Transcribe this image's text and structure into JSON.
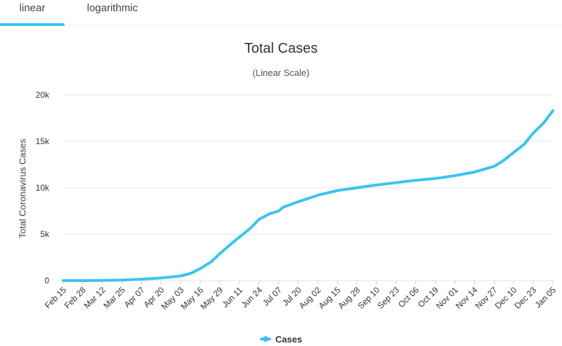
{
  "tabs": [
    {
      "label": "linear",
      "active": true
    },
    {
      "label": "logarithmic",
      "active": false
    }
  ],
  "colors": {
    "accent": "#3cc3f0",
    "series": "#3cc3f0",
    "grid": "#e6e6e6",
    "axis_text": "#333333"
  },
  "chart_data": {
    "type": "line",
    "title": "Total Cases",
    "subtitle": "(Linear Scale)",
    "xlabel": "",
    "ylabel": "Total Coronavirus Cases",
    "ylim": [
      0,
      20000
    ],
    "yticks": [
      0,
      5000,
      10000,
      15000,
      20000
    ],
    "ytick_labels": [
      "0",
      "5k",
      "10k",
      "15k",
      "20k"
    ],
    "xtick_labels": [
      "Feb 15",
      "Feb 28",
      "Mar 12",
      "Mar 25",
      "Apr 07",
      "Apr 20",
      "May 03",
      "May 16",
      "May 29",
      "Jun 11",
      "Jun 24",
      "Jul 07",
      "Jul 20",
      "Aug 02",
      "Aug 15",
      "Aug 28",
      "Sep 10",
      "Sep 23",
      "Oct 06",
      "Oct 19",
      "Nov 01",
      "Nov 14",
      "Nov 27",
      "Dec 10",
      "Dec 23",
      "Jan 05"
    ],
    "grid": true,
    "legend_position": "bottom-center",
    "series": [
      {
        "name": "Cases",
        "x": [
          "Feb 15",
          "Feb 28",
          "Mar 12",
          "Mar 25",
          "Apr 07",
          "Apr 20",
          "May 03",
          "May 10",
          "May 16",
          "May 23",
          "May 29",
          "Jun 05",
          "Jun 11",
          "Jun 18",
          "Jun 24",
          "Jul 01",
          "Jul 07",
          "Jul 10",
          "Jul 20",
          "Aug 02",
          "Aug 15",
          "Aug 28",
          "Sep 10",
          "Sep 23",
          "Oct 06",
          "Oct 19",
          "Nov 01",
          "Nov 14",
          "Nov 27",
          "Dec 03",
          "Dec 10",
          "Dec 17",
          "Dec 23",
          "Dec 30",
          "Jan 05"
        ],
        "values": [
          0,
          0,
          20,
          50,
          150,
          280,
          500,
          800,
          1300,
          2000,
          2900,
          3900,
          4700,
          5600,
          6600,
          7200,
          7500,
          7900,
          8500,
          9200,
          9700,
          10000,
          10300,
          10550,
          10800,
          11000,
          11300,
          11700,
          12300,
          12900,
          13800,
          14700,
          15900,
          17000,
          18300
        ]
      }
    ]
  }
}
